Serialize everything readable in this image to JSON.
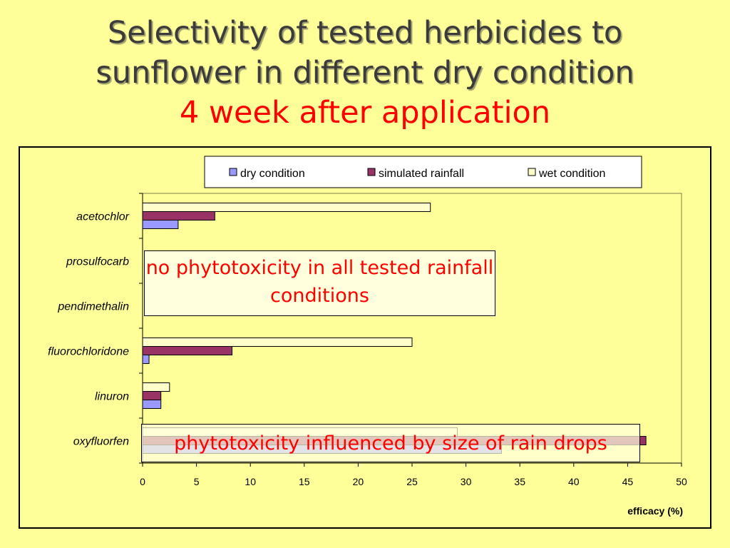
{
  "slide": {
    "title_line1": "Selectivity of tested herbicides to",
    "title_line2": "sunflower in different dry condition",
    "title_line3": "4 week after application"
  },
  "callouts": {
    "no_phyto": "no phytotoxicity in all tested rainfall conditions",
    "phyto_rain": "phytotoxicity influenced by size of rain drops"
  },
  "chart_data": {
    "type": "bar",
    "orientation": "horizontal",
    "categories": [
      "acetochlor",
      "prosulfocarb",
      "pendimethalin",
      "fluorochloridone",
      "linuron",
      "oxyfluorfen"
    ],
    "series": [
      {
        "name": "dry condition",
        "color": "#9999FF",
        "values": [
          3.3,
          0,
          0,
          0.6,
          1.7,
          33.3
        ]
      },
      {
        "name": "simulated rainfall",
        "color": "#993366",
        "values": [
          6.7,
          0,
          0,
          8.3,
          1.7,
          46.7
        ]
      },
      {
        "name": "wet condition",
        "color": "#FFFFCC",
        "values": [
          26.7,
          0,
          0,
          25.0,
          2.5,
          29.2
        ]
      }
    ],
    "xlabel": "efficacy (%)",
    "xlim": [
      0,
      50
    ],
    "xticks": [
      0,
      5,
      10,
      15,
      20,
      25,
      30,
      35,
      40,
      45,
      50
    ],
    "grid": false,
    "legend": "top"
  }
}
